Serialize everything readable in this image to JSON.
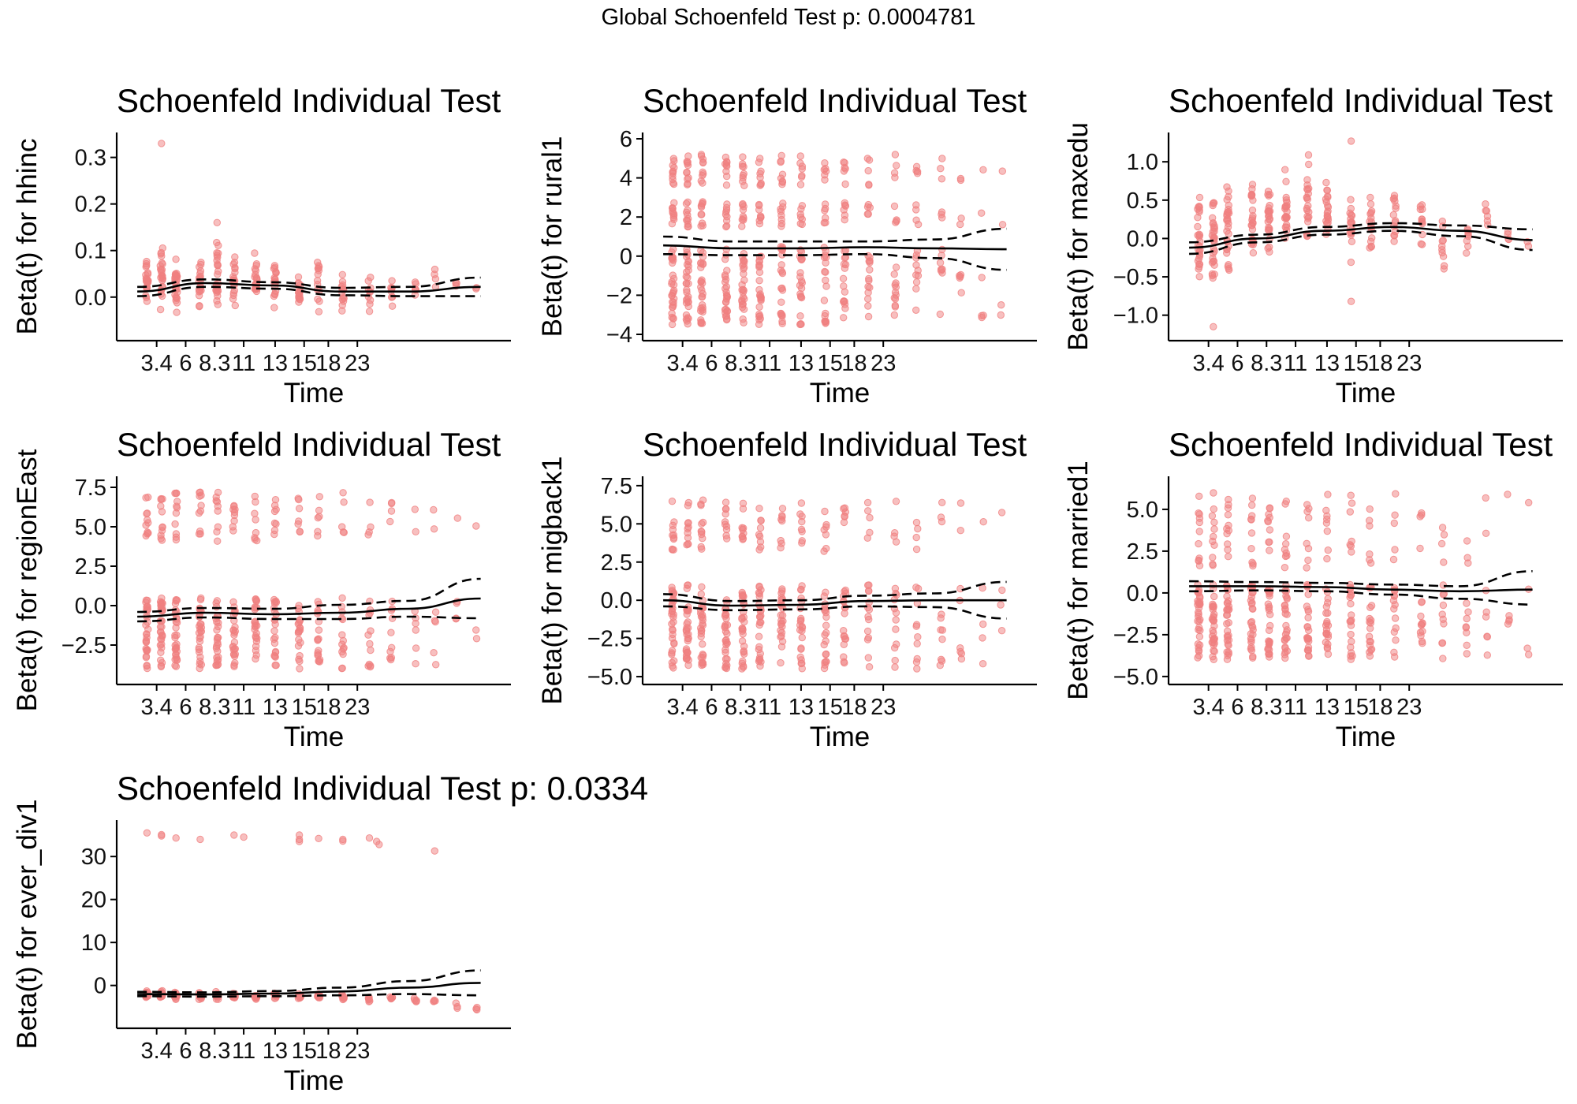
{
  "figure": {
    "suptitle": "Global Schoenfeld Test p: 0.0004781",
    "point_color": "#F08080",
    "line_color": "#000000"
  },
  "chart_data": [
    {
      "type": "scatter",
      "title": "Schoenfeld Individual Test",
      "ylabel": "Beta(t) for hhinc",
      "xlabel": "Time",
      "xticks": [
        "3.4",
        "6",
        "8.3",
        "11",
        "13",
        "15",
        "18",
        "23"
      ],
      "yticks": [
        "0.0",
        "0.1",
        "0.2",
        "0.3"
      ],
      "ytick_values": [
        0,
        0.1,
        0.2,
        0.3
      ],
      "ylim": [
        -0.08,
        0.34
      ],
      "groups": [
        {
          "t": 0.3,
          "lo": -0.06,
          "hi": 0.12,
          "n": 22
        },
        {
          "t": 0.6,
          "lo": -0.05,
          "hi": 0.15,
          "n": 26
        },
        {
          "t": 0.9,
          "lo": -0.06,
          "hi": 0.11,
          "n": 26
        },
        {
          "t": 1.4,
          "lo": -0.05,
          "hi": 0.1,
          "n": 20
        },
        {
          "t": 1.75,
          "lo": -0.05,
          "hi": 0.16,
          "n": 24
        },
        {
          "t": 2.1,
          "lo": -0.05,
          "hi": 0.13,
          "n": 20
        },
        {
          "t": 2.55,
          "lo": -0.04,
          "hi": 0.1,
          "n": 20
        },
        {
          "t": 2.95,
          "lo": -0.04,
          "hi": 0.09,
          "n": 18
        },
        {
          "t": 3.45,
          "lo": -0.04,
          "hi": 0.08,
          "n": 16
        },
        {
          "t": 3.85,
          "lo": -0.04,
          "hi": 0.12,
          "n": 14
        },
        {
          "t": 4.35,
          "lo": -0.04,
          "hi": 0.06,
          "n": 14
        },
        {
          "t": 4.9,
          "lo": -0.05,
          "hi": 0.06,
          "n": 10
        },
        {
          "t": 5.35,
          "lo": -0.03,
          "hi": 0.06,
          "n": 8
        },
        {
          "t": 5.85,
          "lo": -0.02,
          "hi": 0.06,
          "n": 6
        },
        {
          "t": 6.25,
          "lo": -0.02,
          "hi": 0.1,
          "n": 4
        },
        {
          "t": 6.7,
          "lo": -0.01,
          "hi": 0.06,
          "n": 3
        },
        {
          "t": 7.1,
          "lo": -0.01,
          "hi": 0.04,
          "n": 2
        }
      ],
      "outliers": [
        [
          0.6,
          0.33
        ],
        [
          1.75,
          0.16
        ]
      ],
      "fit": [
        0.012,
        0.03,
        0.025,
        0.012,
        0.012,
        0.022
      ],
      "band_upper": [
        0.022,
        0.038,
        0.032,
        0.02,
        0.022,
        0.042
      ],
      "band_lower": [
        0.002,
        0.022,
        0.018,
        0.004,
        0.002,
        0.002
      ]
    },
    {
      "type": "scatter",
      "title": "Schoenfeld Individual Test",
      "ylabel": "Beta(t) for rural1",
      "xlabel": "Time",
      "xticks": [
        "3.4",
        "6",
        "8.3",
        "11",
        "13",
        "15",
        "18",
        "23"
      ],
      "yticks": [
        "−4",
        "−2",
        "0",
        "2",
        "4",
        "6"
      ],
      "ytick_values": [
        -4,
        -2,
        0,
        2,
        4,
        6
      ],
      "ylim": [
        -4,
        6
      ],
      "clusters": [
        [
          -3.5,
          0.5
        ],
        [
          1.5,
          2.8
        ],
        [
          3.6,
          5.2
        ]
      ],
      "groups": [
        {
          "t": 0.3,
          "n": 30
        },
        {
          "t": 0.6,
          "n": 30
        },
        {
          "t": 0.9,
          "n": 28
        },
        {
          "t": 1.4,
          "n": 26
        },
        {
          "t": 1.75,
          "n": 26
        },
        {
          "t": 2.1,
          "n": 24
        },
        {
          "t": 2.55,
          "n": 22
        },
        {
          "t": 2.95,
          "n": 20
        },
        {
          "t": 3.45,
          "n": 18
        },
        {
          "t": 3.85,
          "n": 16
        },
        {
          "t": 4.35,
          "n": 14
        },
        {
          "t": 4.9,
          "n": 12
        },
        {
          "t": 5.35,
          "n": 10
        },
        {
          "t": 5.85,
          "n": 8
        },
        {
          "t": 6.25,
          "n": 5
        },
        {
          "t": 6.7,
          "n": 4
        },
        {
          "t": 7.1,
          "n": 2
        }
      ],
      "fit": [
        0.55,
        0.4,
        0.4,
        0.45,
        0.4,
        0.35
      ],
      "band_upper": [
        1.0,
        0.75,
        0.75,
        0.75,
        0.85,
        1.4
      ],
      "band_lower": [
        0.1,
        0.05,
        0.05,
        0.1,
        -0.1,
        -0.7
      ]
    },
    {
      "type": "scatter",
      "title": "Schoenfeld Individual Test",
      "ylabel": "Beta(t) for maxedu",
      "xlabel": "Time",
      "xticks": [
        "3.4",
        "6",
        "8.3",
        "11",
        "13",
        "15",
        "18",
        "23"
      ],
      "yticks": [
        "−1.0",
        "−0.5",
        "0.0",
        "0.5",
        "1.0"
      ],
      "ytick_values": [
        -1,
        -0.5,
        0,
        0.5,
        1
      ],
      "ylim": [
        -1.25,
        1.3
      ],
      "groups": [
        {
          "t": 0.3,
          "lo": -0.85,
          "hi": 0.8,
          "n": 28
        },
        {
          "t": 0.6,
          "lo": -0.9,
          "hi": 0.85,
          "n": 30
        },
        {
          "t": 0.9,
          "lo": -0.8,
          "hi": 1.0,
          "n": 28
        },
        {
          "t": 1.4,
          "lo": -0.6,
          "hi": 0.95,
          "n": 24
        },
        {
          "t": 1.75,
          "lo": -0.5,
          "hi": 0.95,
          "n": 24
        },
        {
          "t": 2.1,
          "lo": -0.4,
          "hi": 1.0,
          "n": 22
        },
        {
          "t": 2.55,
          "lo": -0.4,
          "hi": 1.25,
          "n": 22
        },
        {
          "t": 2.95,
          "lo": -0.4,
          "hi": 1.0,
          "n": 20
        },
        {
          "t": 3.45,
          "lo": -0.5,
          "hi": 1.05,
          "n": 18
        },
        {
          "t": 3.85,
          "lo": -0.5,
          "hi": 0.95,
          "n": 16
        },
        {
          "t": 4.35,
          "lo": -0.4,
          "hi": 0.85,
          "n": 14
        },
        {
          "t": 4.9,
          "lo": -0.4,
          "hi": 1.0,
          "n": 12
        },
        {
          "t": 5.35,
          "lo": -0.6,
          "hi": 0.6,
          "n": 10
        },
        {
          "t": 5.85,
          "lo": -0.4,
          "hi": 0.4,
          "n": 8
        },
        {
          "t": 6.25,
          "lo": -0.35,
          "hi": 1.0,
          "n": 6
        },
        {
          "t": 6.7,
          "lo": -0.2,
          "hi": 0.3,
          "n": 4
        },
        {
          "t": 7.1,
          "lo": -0.3,
          "hi": 0.2,
          "n": 2
        }
      ],
      "outliers": [
        [
          0.6,
          -1.15
        ],
        [
          3.45,
          -0.82
        ],
        [
          3.45,
          1.27
        ]
      ],
      "fit": [
        -0.12,
        0.0,
        0.1,
        0.15,
        0.1,
        -0.02
      ],
      "band_upper": [
        -0.05,
        0.05,
        0.15,
        0.2,
        0.17,
        0.12
      ],
      "band_lower": [
        -0.2,
        -0.05,
        0.05,
        0.1,
        0.03,
        -0.15
      ]
    },
    {
      "type": "scatter",
      "title": "Schoenfeld Individual Test",
      "ylabel": "Beta(t) for regionEast",
      "xlabel": "Time",
      "xticks": [
        "3.4",
        "6",
        "8.3",
        "11",
        "13",
        "15",
        "18",
        "23"
      ],
      "yticks": [
        "−2.5",
        "0.0",
        "2.5",
        "5.0",
        "7.5"
      ],
      "ytick_values": [
        -2.5,
        0,
        2.5,
        5,
        7.5
      ],
      "ylim": [
        -4.6,
        7.8
      ],
      "clusters": [
        [
          -4.0,
          0.5
        ],
        [
          4.0,
          7.2
        ]
      ],
      "groups": [
        {
          "t": 0.3,
          "n": 30
        },
        {
          "t": 0.6,
          "n": 32
        },
        {
          "t": 0.9,
          "n": 30
        },
        {
          "t": 1.4,
          "n": 28
        },
        {
          "t": 1.75,
          "n": 26
        },
        {
          "t": 2.1,
          "n": 26
        },
        {
          "t": 2.55,
          "n": 24
        },
        {
          "t": 2.95,
          "n": 22
        },
        {
          "t": 3.45,
          "n": 20
        },
        {
          "t": 3.85,
          "n": 18
        },
        {
          "t": 4.35,
          "n": 14
        },
        {
          "t": 4.9,
          "n": 12
        },
        {
          "t": 5.35,
          "n": 10
        },
        {
          "t": 5.85,
          "n": 6
        },
        {
          "t": 6.25,
          "n": 5
        },
        {
          "t": 6.7,
          "n": 4
        },
        {
          "t": 7.1,
          "n": 2
        }
      ],
      "fit": [
        -0.7,
        -0.45,
        -0.55,
        -0.45,
        -0.2,
        0.45
      ],
      "band_upper": [
        -0.4,
        -0.15,
        -0.2,
        0.05,
        0.3,
        1.7
      ],
      "band_lower": [
        -1.0,
        -0.75,
        -0.85,
        -0.85,
        -0.7,
        -0.8
      ]
    },
    {
      "type": "scatter",
      "title": "Schoenfeld Individual Test",
      "ylabel": "Beta(t) for migback1",
      "xlabel": "Time",
      "xticks": [
        "3.4",
        "6",
        "8.3",
        "11",
        "13",
        "15",
        "18",
        "23"
      ],
      "yticks": [
        "−5.0",
        "−2.5",
        "0.0",
        "2.5",
        "5.0",
        "7.5"
      ],
      "ytick_values": [
        -5,
        -2.5,
        0,
        2.5,
        5,
        7.5
      ],
      "ylim": [
        -5.1,
        7.7
      ],
      "clusters": [
        [
          -4.5,
          1.0
        ],
        [
          3.2,
          6.6
        ]
      ],
      "groups": [
        {
          "t": 0.3,
          "n": 32
        },
        {
          "t": 0.6,
          "n": 32
        },
        {
          "t": 0.9,
          "n": 30
        },
        {
          "t": 1.4,
          "n": 28
        },
        {
          "t": 1.75,
          "n": 28
        },
        {
          "t": 2.1,
          "n": 26
        },
        {
          "t": 2.55,
          "n": 24
        },
        {
          "t": 2.95,
          "n": 22
        },
        {
          "t": 3.45,
          "n": 20
        },
        {
          "t": 3.85,
          "n": 18
        },
        {
          "t": 4.35,
          "n": 14
        },
        {
          "t": 4.9,
          "n": 12
        },
        {
          "t": 5.35,
          "n": 10
        },
        {
          "t": 5.85,
          "n": 8
        },
        {
          "t": 6.25,
          "n": 6
        },
        {
          "t": 6.7,
          "n": 4
        },
        {
          "t": 7.1,
          "n": 3
        }
      ],
      "fit": [
        0.0,
        -0.35,
        -0.3,
        -0.05,
        0.0,
        0.0
      ],
      "band_upper": [
        0.4,
        -0.05,
        0.0,
        0.3,
        0.45,
        1.2
      ],
      "band_lower": [
        -0.4,
        -0.65,
        -0.6,
        -0.4,
        -0.45,
        -1.2
      ]
    },
    {
      "type": "scatter",
      "title": "Schoenfeld Individual Test",
      "ylabel": "Beta(t) for married1",
      "xlabel": "Time",
      "xticks": [
        "3.4",
        "6",
        "8.3",
        "11",
        "13",
        "15",
        "18",
        "23"
      ],
      "yticks": [
        "−5.0",
        "−2.5",
        "0.0",
        "2.5",
        "5.0"
      ],
      "ytick_values": [
        -5,
        -2.5,
        0,
        2.5,
        5
      ],
      "ylim": [
        -5.1,
        6.6
      ],
      "clusters": [
        [
          -4.0,
          0.5
        ],
        [
          1.5,
          6.0
        ]
      ],
      "groups": [
        {
          "t": 0.3,
          "n": 32
        },
        {
          "t": 0.6,
          "n": 32
        },
        {
          "t": 0.9,
          "n": 30
        },
        {
          "t": 1.4,
          "n": 28
        },
        {
          "t": 1.75,
          "n": 28
        },
        {
          "t": 2.1,
          "n": 26
        },
        {
          "t": 2.55,
          "n": 24
        },
        {
          "t": 2.95,
          "n": 22
        },
        {
          "t": 3.45,
          "n": 20
        },
        {
          "t": 3.85,
          "n": 18
        },
        {
          "t": 4.35,
          "n": 14
        },
        {
          "t": 4.9,
          "n": 12
        },
        {
          "t": 5.35,
          "n": 10
        },
        {
          "t": 5.85,
          "n": 8
        },
        {
          "t": 6.25,
          "n": 6
        },
        {
          "t": 6.7,
          "n": 4
        },
        {
          "t": 7.1,
          "n": 3
        }
      ],
      "fit": [
        0.4,
        0.4,
        0.35,
        0.2,
        0.1,
        0.2
      ],
      "band_upper": [
        0.7,
        0.65,
        0.6,
        0.5,
        0.4,
        1.3
      ],
      "band_lower": [
        0.1,
        0.15,
        0.1,
        -0.1,
        -0.35,
        -0.7
      ]
    },
    {
      "type": "scatter",
      "title": "Schoenfeld Individual Test p: 0.0334",
      "ylabel": "Beta(t) for ever_div1",
      "xlabel": "Time",
      "xticks": [
        "3.4",
        "6",
        "8.3",
        "11",
        "13",
        "15",
        "18",
        "23"
      ],
      "yticks": [
        "0",
        "10",
        "20",
        "30"
      ],
      "ytick_values": [
        0,
        10,
        20,
        30
      ],
      "ylim": [
        -8.5,
        37
      ],
      "groups": [
        {
          "t": 0.3,
          "lo": -3.5,
          "hi": -1.0,
          "n": 16
        },
        {
          "t": 0.6,
          "lo": -3.5,
          "hi": -1.0,
          "n": 18
        },
        {
          "t": 0.9,
          "lo": -3.5,
          "hi": -1.2,
          "n": 16
        },
        {
          "t": 1.4,
          "lo": -3.5,
          "hi": -1.2,
          "n": 14
        },
        {
          "t": 1.75,
          "lo": -3.5,
          "hi": -1.2,
          "n": 14
        },
        {
          "t": 2.1,
          "lo": -3.5,
          "hi": -1.2,
          "n": 12
        },
        {
          "t": 2.55,
          "lo": -3.5,
          "hi": -1.5,
          "n": 12
        },
        {
          "t": 2.95,
          "lo": -3.5,
          "hi": -1.5,
          "n": 10
        },
        {
          "t": 3.45,
          "lo": -3.5,
          "hi": -1.5,
          "n": 10
        },
        {
          "t": 3.85,
          "lo": -3.5,
          "hi": -1.5,
          "n": 9
        },
        {
          "t": 4.35,
          "lo": -3.5,
          "hi": -1.8,
          "n": 8
        },
        {
          "t": 4.9,
          "lo": -4.0,
          "hi": -2.0,
          "n": 7
        },
        {
          "t": 5.35,
          "lo": -4.0,
          "hi": -2.0,
          "n": 6
        },
        {
          "t": 5.85,
          "lo": -4.5,
          "hi": -2.5,
          "n": 5
        },
        {
          "t": 6.25,
          "lo": -4.5,
          "hi": -3.0,
          "n": 4
        },
        {
          "t": 6.7,
          "lo": -5.5,
          "hi": -3.5,
          "n": 3
        },
        {
          "t": 7.1,
          "lo": -7.0,
          "hi": -4.5,
          "n": 3
        }
      ],
      "outliers": [
        [
          0.3,
          35.5
        ],
        [
          0.6,
          34.8
        ],
        [
          0.6,
          35.1
        ],
        [
          0.9,
          34.3
        ],
        [
          1.4,
          34.0
        ],
        [
          2.1,
          35.0
        ],
        [
          2.3,
          34.5
        ],
        [
          3.45,
          35.0
        ],
        [
          3.45,
          34.0
        ],
        [
          3.45,
          33.5
        ],
        [
          3.85,
          34.2
        ],
        [
          4.35,
          34.0
        ],
        [
          4.35,
          33.6
        ],
        [
          4.9,
          34.3
        ],
        [
          5.05,
          33.5
        ],
        [
          5.1,
          32.8
        ],
        [
          6.25,
          31.3
        ]
      ],
      "fit": [
        -2.0,
        -2.1,
        -1.9,
        -1.4,
        -0.5,
        0.6
      ],
      "band_upper": [
        -1.5,
        -1.6,
        -1.3,
        -0.5,
        1.0,
        3.5
      ],
      "band_lower": [
        -2.5,
        -2.6,
        -2.5,
        -2.3,
        -2.0,
        -2.3
      ]
    }
  ]
}
